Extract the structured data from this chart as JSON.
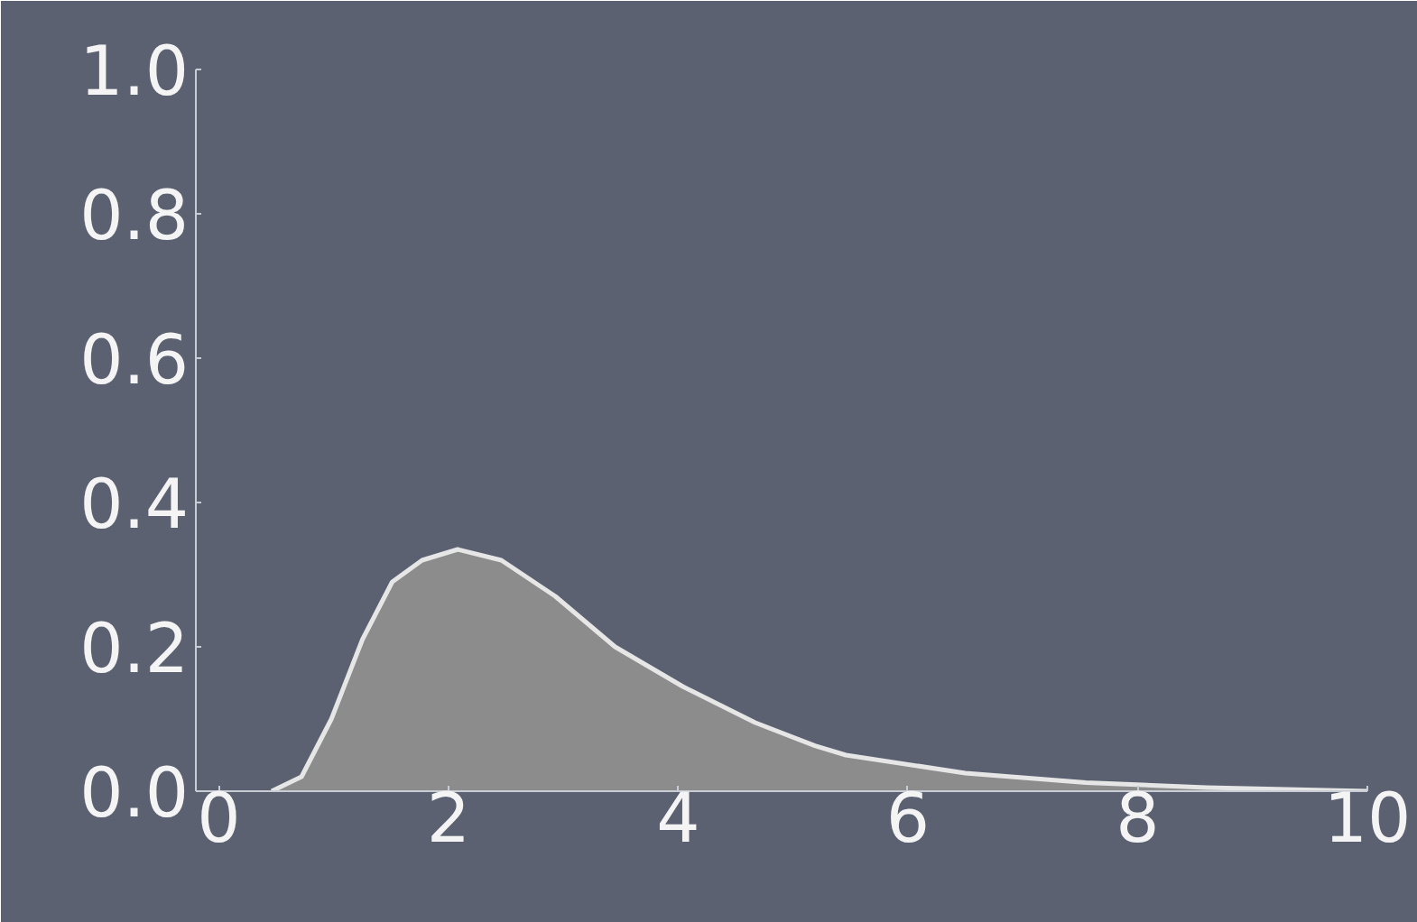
{
  "chart_data": {
    "type": "area",
    "x": [
      0.46,
      0.72,
      0.98,
      1.25,
      1.51,
      1.77,
      2.08,
      2.46,
      2.93,
      3.45,
      4.04,
      4.67,
      5.19,
      5.46,
      6.5,
      7.55,
      8.6,
      10.0
    ],
    "series": [
      {
        "color": "#8c8c8c",
        "values": [
          0,
          0.02,
          0.1,
          0.21,
          0.29,
          0.32,
          0.335,
          0.32,
          0.27,
          0.2,
          0.145,
          0.095,
          0.063,
          0.05,
          0.025,
          0.012,
          0.005,
          0
        ]
      }
    ],
    "xlim": [
      -0.2,
      10
    ],
    "xticks": [
      0,
      2,
      4,
      6,
      8,
      10
    ],
    "ylim": [
      0,
      1.0
    ],
    "yticks": [
      {
        "value": 0,
        "label": "0.0"
      },
      {
        "value": 0.2,
        "label": "0.2"
      },
      {
        "value": 0.4,
        "label": "0.4"
      },
      {
        "value": 0.6,
        "label": "0.6"
      },
      {
        "value": 0.8,
        "label": "0.8"
      },
      {
        "value": 1.0,
        "label": "1.0"
      }
    ],
    "grid": false
  }
}
